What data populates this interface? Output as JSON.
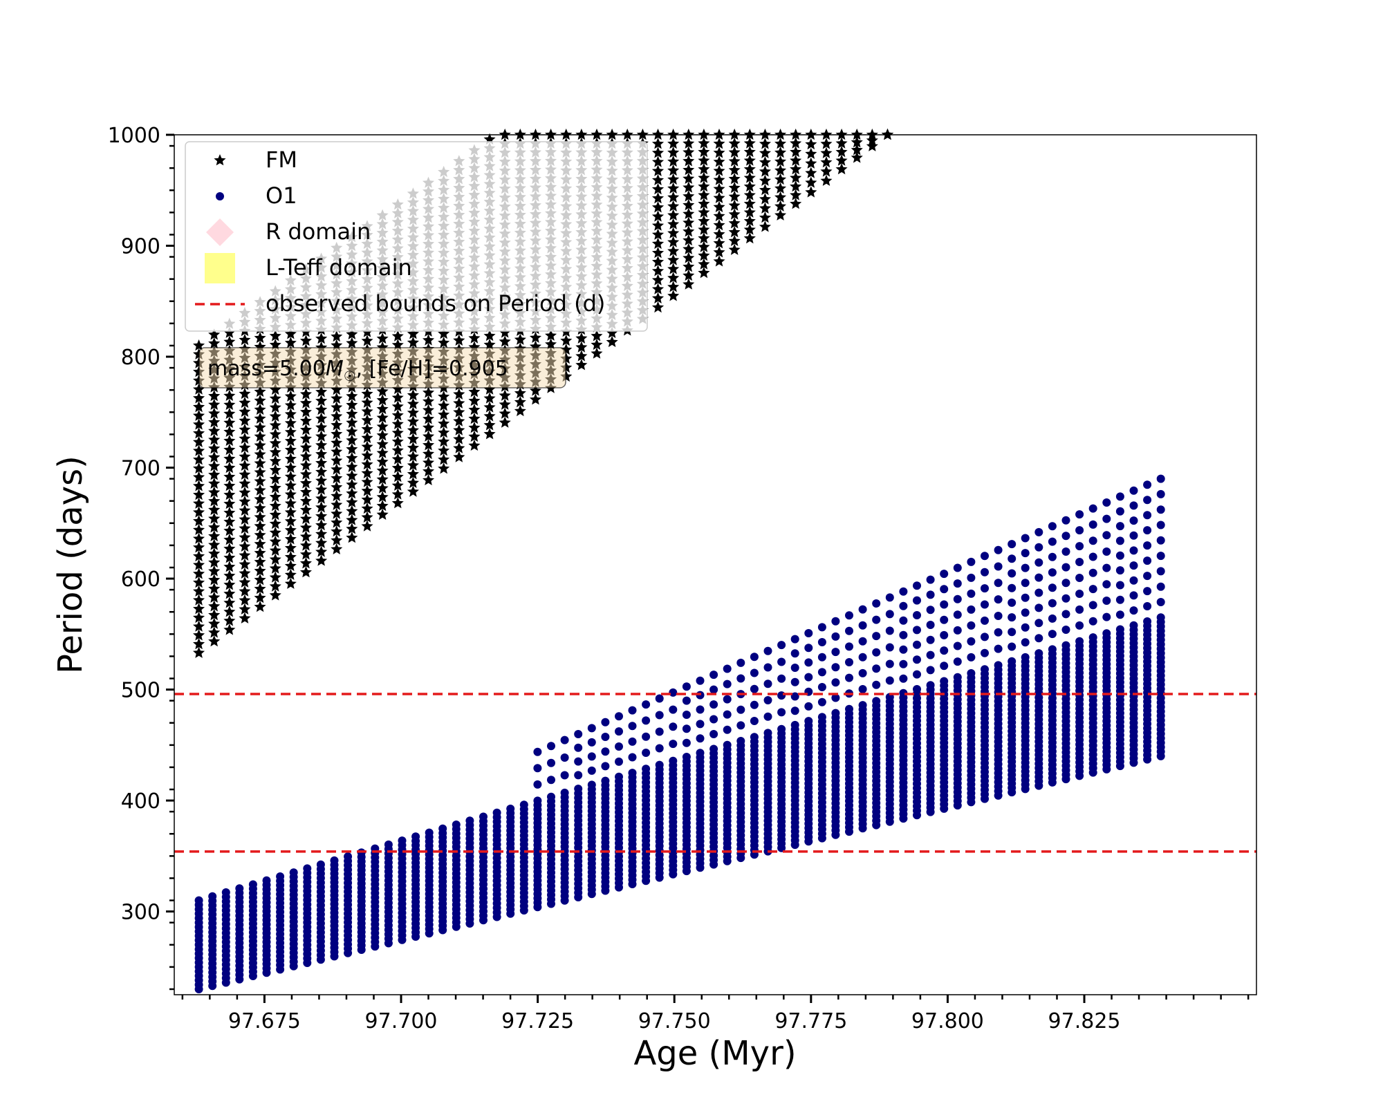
{
  "chart_data": {
    "type": "scatter",
    "xlabel": "Age (Myr)",
    "ylabel": "Period (days)",
    "xlim": [
      97.6585,
      97.8565
    ],
    "ylim": [
      225,
      1000
    ],
    "x_ticks": [
      97.675,
      97.7,
      97.725,
      97.75,
      97.775,
      97.8,
      97.825
    ],
    "x_tick_labels": [
      "97.675",
      "97.700",
      "97.725",
      "97.750",
      "97.775",
      "97.800",
      "97.825"
    ],
    "y_ticks": [
      300,
      400,
      500,
      600,
      700,
      800,
      900,
      1000
    ],
    "y_tick_labels": [
      "300",
      "400",
      "500",
      "600",
      "700",
      "800",
      "900",
      "1000"
    ],
    "grid": false,
    "legend_position": "top-left",
    "legend": [
      {
        "label": "FM",
        "marker": "star",
        "color": "#000000"
      },
      {
        "label": "O1",
        "marker": "circle",
        "color": "#000080"
      },
      {
        "label": "R domain",
        "marker": "diamond",
        "color": "#ffc0cb"
      },
      {
        "label": "L-Teff domain",
        "marker": "square",
        "color": "#ffff80"
      },
      {
        "label": "observed bounds on Period (d)",
        "marker": "dashed-line",
        "color": "#e31a1c"
      }
    ],
    "series": [
      {
        "name": "FM",
        "marker": "star",
        "color": "#000000",
        "age_range": [
          97.663,
          97.789
        ],
        "period_min_range": [
          533,
          1000
        ],
        "period_max_range": [
          810,
          1000
        ],
        "n_stripes": 46
      },
      {
        "name": "O1",
        "marker": "circle",
        "color": "#000080",
        "age_range": [
          97.663,
          97.839
        ],
        "period_min_range": [
          230,
          440
        ],
        "period_max_range": [
          310,
          690
        ],
        "n_stripes": 72
      }
    ],
    "hlines": [
      {
        "name": "observed bounds on Period (d)",
        "y": 496,
        "style": "dashed",
        "color": "#e31a1c"
      },
      {
        "y": 354,
        "style": "dashed",
        "color": "#e31a1c"
      }
    ],
    "annotation": {
      "prefix": "mass=5.00",
      "italic": "M",
      "subscript": "☉",
      "suffix": ", [Fe/H]=0.905"
    }
  }
}
